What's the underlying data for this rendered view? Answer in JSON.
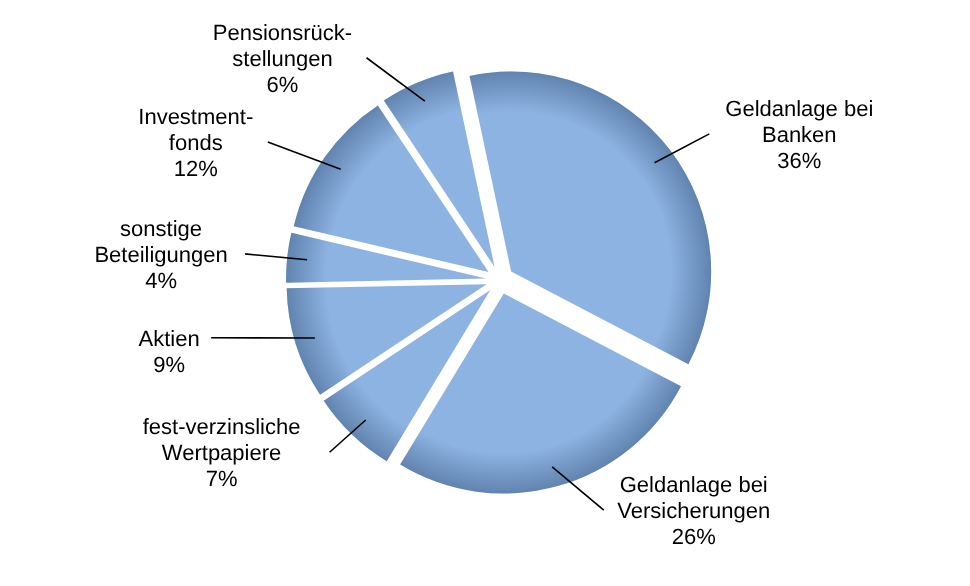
{
  "chart_data": {
    "type": "pie",
    "categories": [
      "Geldanlage bei\nBanken",
      "Geldanlage bei\nVersicherungen",
      "fest-verzinsliche\nWertpapiere",
      "Aktien",
      "sonstige\nBeteiligungen",
      "Investment-\nfonds",
      "Pensionsrück-\nstellungen"
    ],
    "values": [
      36,
      26,
      7,
      9,
      4,
      12,
      6
    ],
    "value_labels": [
      "36%",
      "26%",
      "7%",
      "9%",
      "4%",
      "12%",
      "6%"
    ],
    "colors": [
      "#8db3e2",
      "#8db3e2",
      "#8db3e2",
      "#8db3e2",
      "#8db3e2",
      "#8db3e2",
      "#8db3e2"
    ]
  }
}
